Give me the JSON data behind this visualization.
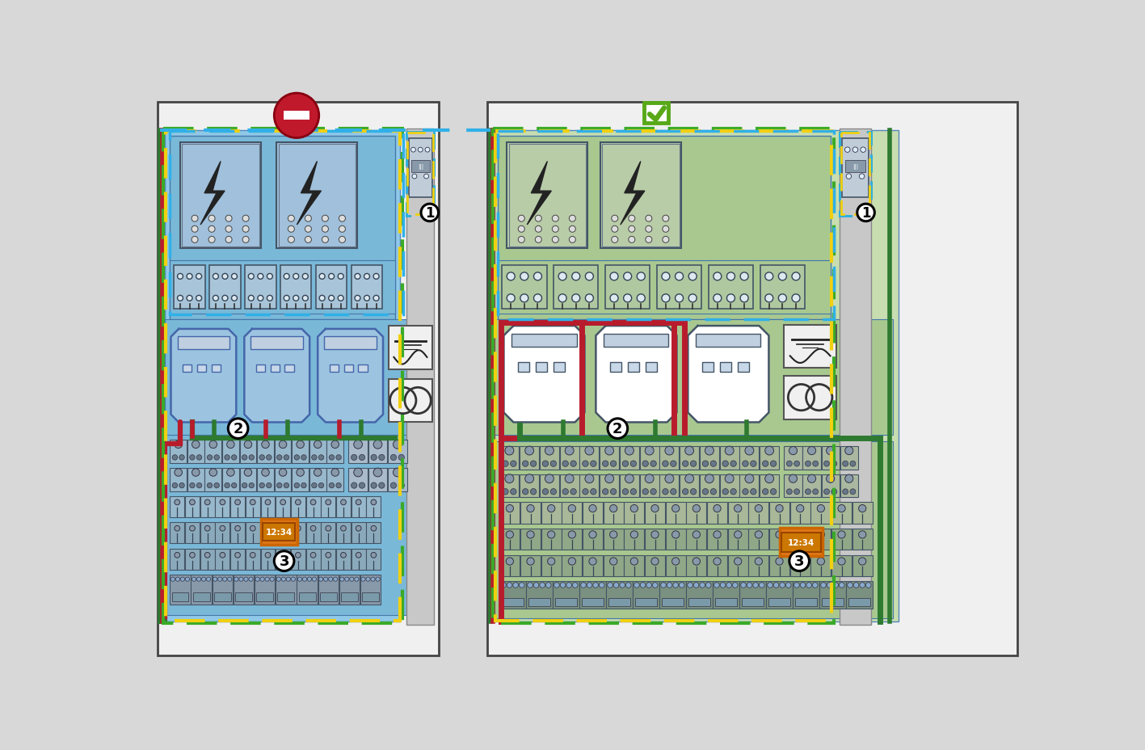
{
  "bg_color": "#d8d8d8",
  "left_panel_bg": "#e8e8e8",
  "right_panel_bg": "#e8e8e8",
  "left_content_fill": "#90c8e8",
  "right_content_fill": "#c8ddb0",
  "left_top_section_fill": "#88bce0",
  "right_top_section_fill": "#b8d0a0",
  "vfd_left_fill": "#9cc4e0",
  "vfd_right_fill": "#ffffff",
  "wire_red": "#b81c2c",
  "wire_green": "#2d7a30",
  "wire_blue_dashed": "#30b0e8",
  "wire_yellow": "#f0d010",
  "wire_green_dashed": "#40a030",
  "bad_icon_red": "#c0192c",
  "good_icon_green": "#58a818",
  "orange_box": "#e07818",
  "terminal_fill_left": "#98b8cc",
  "terminal_fill_right": "#a8b898",
  "relay_fill_left": "#a8c4d8",
  "relay_fill_right": "#b0c8a0",
  "sidebar_fill": "#c8c8c8",
  "small_module_fill": "#b0c0d0",
  "filter_module_fill_left": "#a0c0dc",
  "filter_module_fill_right": "#b8cca8",
  "transformer_fill": "#f0f0f0",
  "circle_label_fill": "white",
  "vfd_inner_fill": "#c8d8e8"
}
